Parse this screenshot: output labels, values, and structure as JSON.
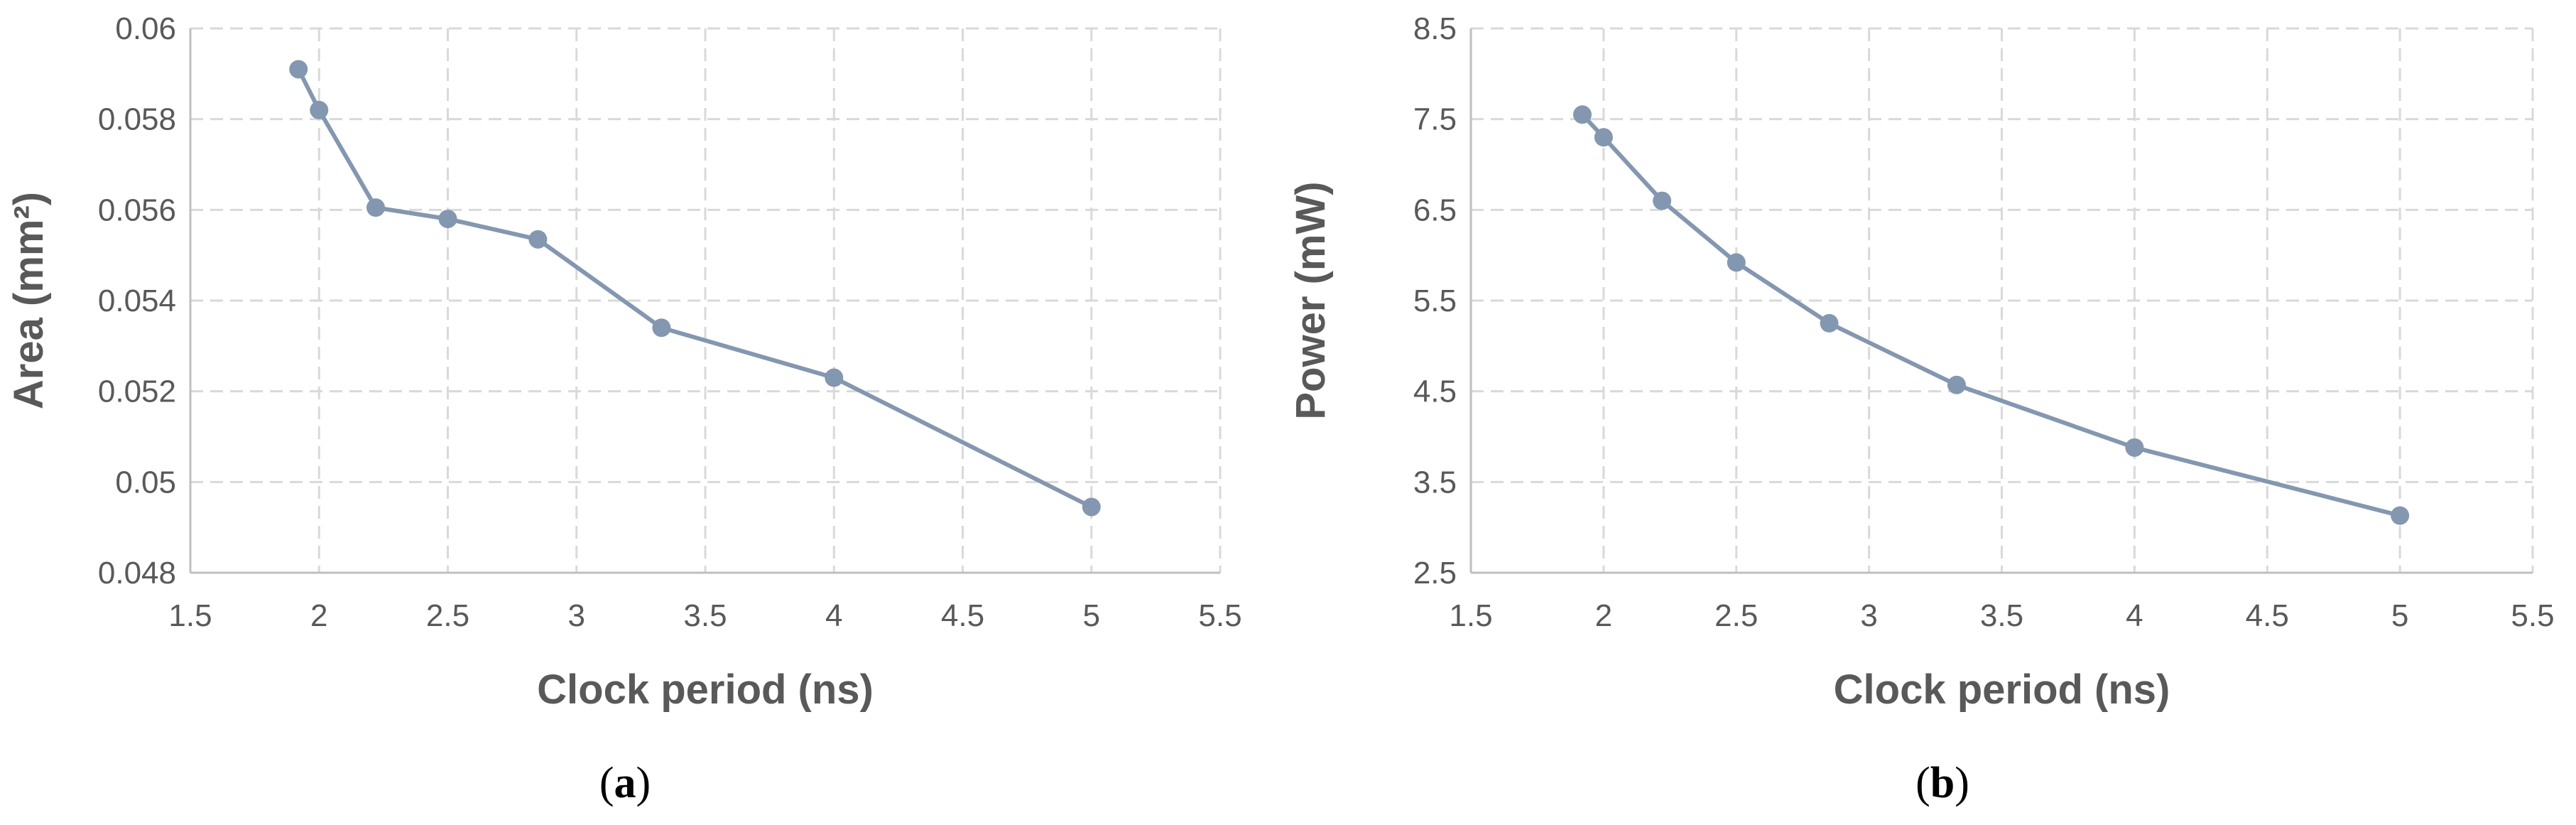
{
  "chart_data": [
    {
      "type": "line",
      "panel_label_open": "(",
      "panel_label": "a",
      "panel_label_close": ")",
      "xlabel": "Clock period (ns)",
      "ylabel": "Area (mm²)",
      "xlim": [
        1.5,
        5.5
      ],
      "ylim": [
        0.048,
        0.06
      ],
      "x_ticks": [
        "1.5",
        "2",
        "2.5",
        "3",
        "3.5",
        "4",
        "4.5",
        "5",
        "5.5"
      ],
      "y_ticks": [
        "0.048",
        "0.05",
        "0.052",
        "0.054",
        "0.056",
        "0.058",
        "0.06"
      ],
      "grid": true,
      "color": "#8497b0",
      "series": [
        {
          "x": [
            1.92,
            2.0,
            2.22,
            2.5,
            2.85,
            3.33,
            4.0,
            5.0
          ],
          "y": [
            0.0591,
            0.0582,
            0.05605,
            0.0558,
            0.05535,
            0.0534,
            0.0523,
            0.04945
          ]
        }
      ]
    },
    {
      "type": "line",
      "panel_label_open": "(",
      "panel_label": "b",
      "panel_label_close": ")",
      "xlabel": "Clock period (ns)",
      "ylabel": "Power (mW)",
      "xlim": [
        1.5,
        5.5
      ],
      "ylim": [
        2.5,
        8.5
      ],
      "x_ticks": [
        "1.5",
        "2",
        "2.5",
        "3",
        "3.5",
        "4",
        "4.5",
        "5",
        "5.5"
      ],
      "y_ticks": [
        "2.5",
        "3.5",
        "4.5",
        "5.5",
        "6.5",
        "7.5",
        "8.5"
      ],
      "grid": true,
      "color": "#8497b0",
      "series": [
        {
          "x": [
            1.92,
            2.0,
            2.22,
            2.5,
            2.85,
            3.33,
            4.0,
            5.0
          ],
          "y": [
            7.55,
            7.3,
            6.6,
            5.92,
            5.25,
            4.57,
            3.88,
            3.13
          ]
        }
      ]
    }
  ]
}
